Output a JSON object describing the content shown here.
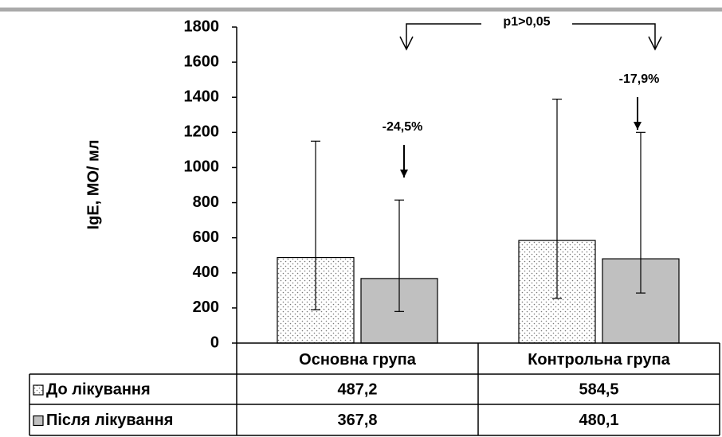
{
  "chart_data": {
    "type": "bar",
    "y_label": "IgE, МО/ мл",
    "categories": [
      "Основна група",
      "Контрольна група"
    ],
    "series": [
      {
        "name": "До лікування",
        "color": "#ffffff",
        "pattern": "dots",
        "values": [
          487.2,
          584.5
        ],
        "value_labels": [
          "487,2",
          "584,5"
        ],
        "errors_upper": [
          663,
          805
        ],
        "errors_lower": [
          297,
          330
        ]
      },
      {
        "name": "Після лікування",
        "color": "#c0c0c0",
        "values": [
          367.8,
          480.1
        ],
        "value_labels": [
          "367,8",
          "480,1"
        ],
        "errors_upper": [
          447,
          720
        ],
        "errors_lower": [
          188,
          195
        ]
      }
    ],
    "annotations": [
      {
        "text": "-24,5%"
      },
      {
        "text": "-17,9%"
      },
      {
        "text": "p1>0,05"
      }
    ],
    "ylim": [
      0,
      1800
    ],
    "yticks": [
      0,
      200,
      400,
      600,
      800,
      1000,
      1200,
      1400,
      1600,
      1800
    ],
    "grid": false
  }
}
